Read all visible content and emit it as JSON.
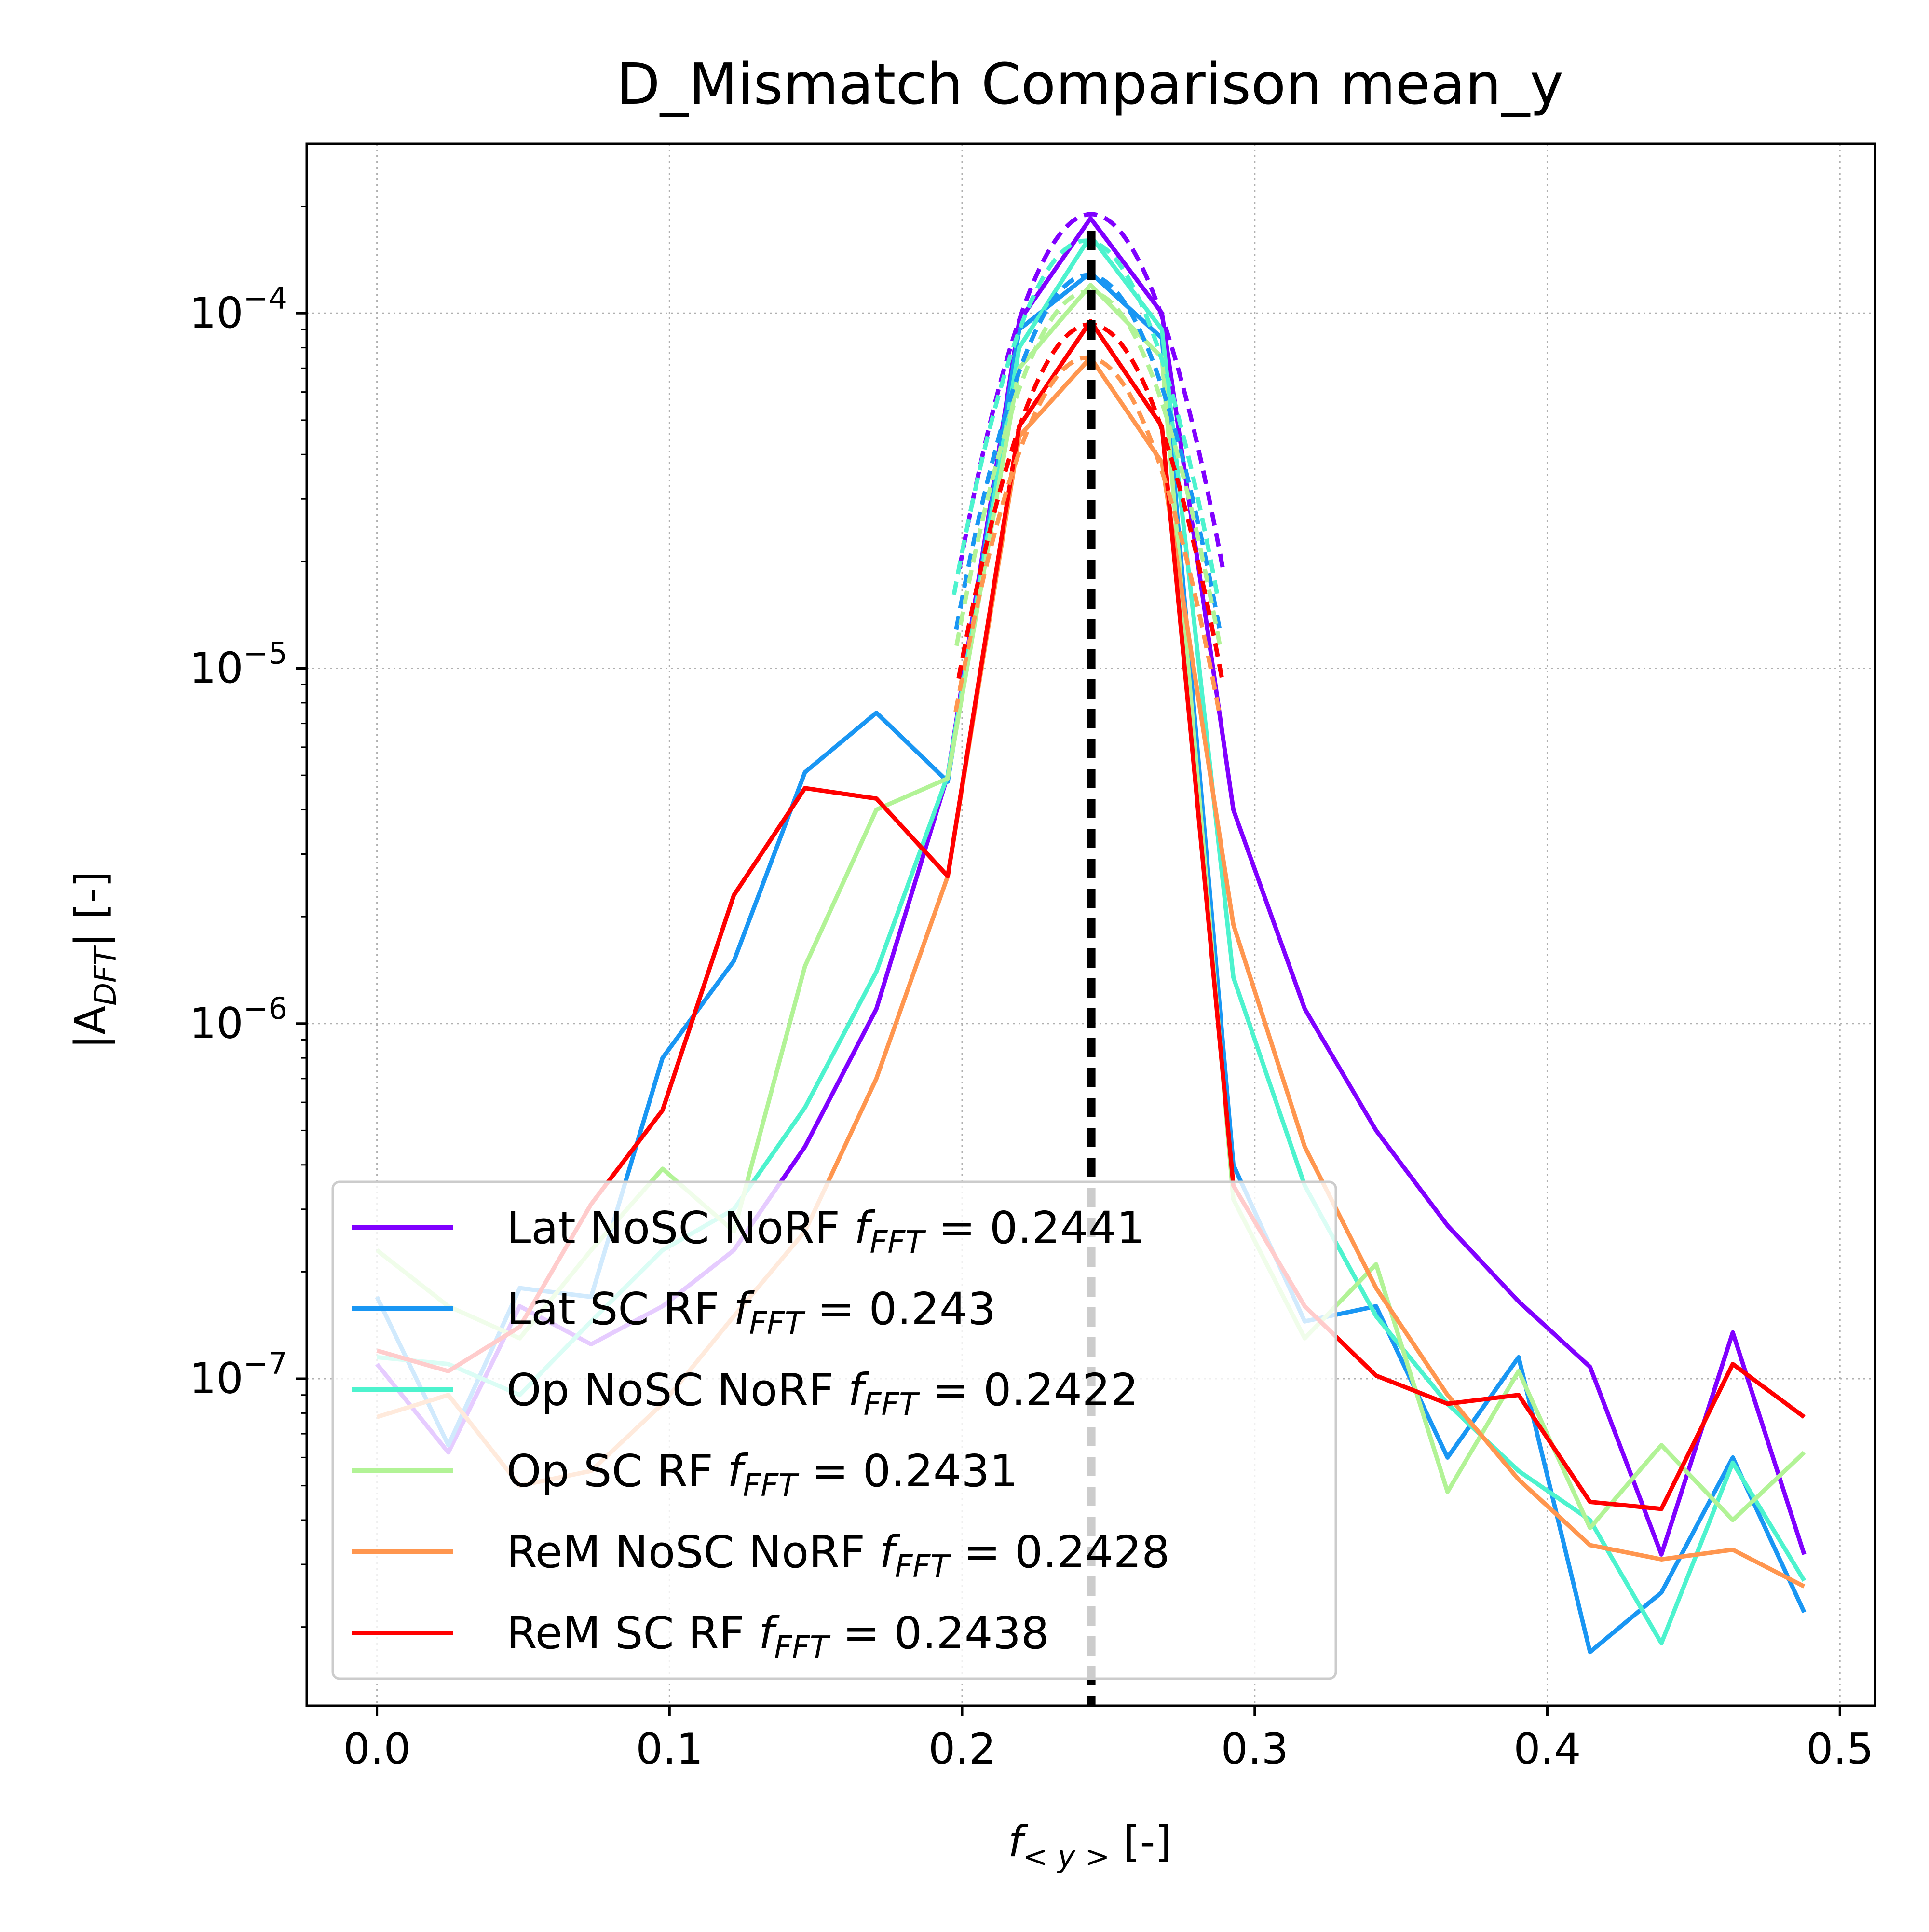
{
  "chart_data": {
    "type": "line",
    "title": "D_Mismatch Comparison mean_y",
    "xlabel": {
      "prefix": "f",
      "subscript": "< y >",
      "suffix": " [-]"
    },
    "ylabel": {
      "prefix": "|A",
      "subscript": "DFT",
      "suffix": "| [-]"
    },
    "xscale": "linear",
    "yscale": "log",
    "xlim": [
      -0.024,
      0.512
    ],
    "ylim": [
      1.2e-08,
      0.0003
    ],
    "grid": true,
    "legend_position": "lower-left",
    "x_ticks": [
      {
        "value": 0.0,
        "label": "0.0"
      },
      {
        "value": 0.1,
        "label": "0.1"
      },
      {
        "value": 0.2,
        "label": "0.2"
      },
      {
        "value": 0.3,
        "label": "0.3"
      },
      {
        "value": 0.4,
        "label": "0.4"
      },
      {
        "value": 0.5,
        "label": "0.5"
      }
    ],
    "y_ticks": [
      {
        "value": 1e-07,
        "base": "10",
        "exp": "−7"
      },
      {
        "value": 1e-06,
        "base": "10",
        "exp": "−6"
      },
      {
        "value": 1e-05,
        "base": "10",
        "exp": "−5"
      },
      {
        "value": 0.0001,
        "base": "10",
        "exp": "−4"
      }
    ],
    "x": [
      0.0,
      0.0244,
      0.0488,
      0.0732,
      0.0976,
      0.122,
      0.1463,
      0.1707,
      0.1951,
      0.2195,
      0.2439,
      0.2683,
      0.2927,
      0.3171,
      0.3415,
      0.3659,
      0.3902,
      0.4146,
      0.439,
      0.4634,
      0.4878
    ],
    "series": [
      {
        "label": "Lat NoSC NoRF",
        "freq_label": "0.2441",
        "color": "#8000ff",
        "values": [
          1.1e-07,
          6.2e-08,
          1.6e-07,
          1.25e-07,
          1.6e-07,
          2.3e-07,
          4.5e-07,
          1.1e-06,
          5e-06,
          9.5e-05,
          0.000185,
          0.0001,
          4e-06,
          1.1e-06,
          5e-07,
          2.7e-07,
          1.65e-07,
          1.08e-07,
          3.2e-08,
          1.35e-07,
          3.2e-08
        ],
        "peak_fit": {
          "center": 0.2441,
          "peak": 0.00019
        }
      },
      {
        "label": "Lat SC RF",
        "freq_label": "0.243",
        "color": "#1996f3",
        "values": [
          1.7e-07,
          6.5e-08,
          1.8e-07,
          1.7e-07,
          8e-07,
          1.5e-06,
          5.1e-06,
          7.5e-06,
          4.8e-06,
          9e-05,
          0.00013,
          8.5e-05,
          4e-07,
          1.45e-07,
          1.6e-07,
          6e-08,
          1.15e-07,
          1.7e-08,
          2.5e-08,
          6e-08,
          2.2e-08
        ],
        "peak_fit": {
          "center": 0.243,
          "peak": 0.000128
        }
      },
      {
        "label": "Op NoSC NoRF",
        "freq_label": "0.2422",
        "color": "#4df3ce",
        "values": [
          1.15e-07,
          1.1e-07,
          9e-08,
          1.45e-07,
          2.3e-07,
          3e-07,
          5.8e-07,
          1.4e-06,
          5e-06,
          8e-05,
          0.000165,
          9e-05,
          1.35e-06,
          3.5e-07,
          1.5e-07,
          8.5e-08,
          5.5e-08,
          4e-08,
          1.8e-08,
          5.8e-08,
          2.7e-08
        ],
        "peak_fit": {
          "center": 0.2422,
          "peak": 0.00016
        }
      },
      {
        "label": "Op SC RF",
        "freq_label": "0.2431",
        "color": "#b2f396",
        "values": [
          2.3e-07,
          1.6e-07,
          1.3e-07,
          2.3e-07,
          3.9e-07,
          2.6e-07,
          1.45e-06,
          4e-06,
          4.9e-06,
          7e-05,
          0.00012,
          7.5e-05,
          3.2e-07,
          1.3e-07,
          2.1e-07,
          4.8e-08,
          1.05e-07,
          3.8e-08,
          6.5e-08,
          4e-08,
          6.2e-08
        ],
        "peak_fit": {
          "center": 0.2431,
          "peak": 0.000115
        }
      },
      {
        "label": "ReM NoSC NoRF",
        "freq_label": "0.2428",
        "color": "#ff964f",
        "values": [
          7.8e-08,
          9e-08,
          5e-08,
          5.5e-08,
          8.5e-08,
          1.5e-07,
          2.6e-07,
          7e-07,
          2.6e-06,
          4.5e-05,
          7.5e-05,
          3.8e-05,
          1.9e-06,
          4.5e-07,
          1.8e-07,
          9e-08,
          5.2e-08,
          3.4e-08,
          3.1e-08,
          3.3e-08,
          2.6e-08
        ],
        "peak_fit": {
          "center": 0.2428,
          "peak": 7.5e-05
        }
      },
      {
        "label": "ReM SC RF",
        "freq_label": "0.2438",
        "color": "#ff0000",
        "values": [
          1.2e-07,
          1.05e-07,
          1.4e-07,
          3.1e-07,
          5.7e-07,
          2.3e-06,
          4.6e-06,
          4.3e-06,
          2.6e-06,
          4.8e-05,
          9.5e-05,
          4.8e-05,
          3.5e-07,
          1.6e-07,
          1.02e-07,
          8.5e-08,
          9e-08,
          4.5e-08,
          4.3e-08,
          1.1e-07,
          7.8e-08
        ],
        "peak_fit": {
          "center": 0.2438,
          "peak": 9.3e-05
        }
      }
    ],
    "vlines": [
      {
        "x": 0.2441,
        "color": "#000000",
        "style": "dashed"
      }
    ]
  }
}
